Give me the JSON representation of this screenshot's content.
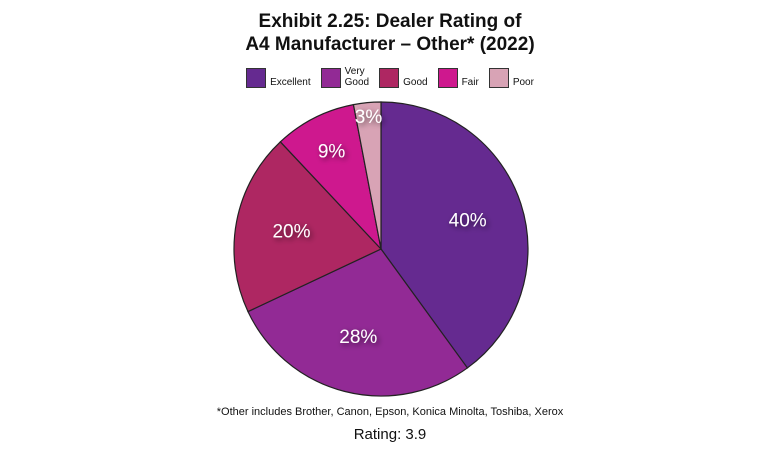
{
  "chart_data": {
    "type": "pie",
    "title_line1": "Exhibit 2.25: Dealer Rating of",
    "title_line2": "A4 Manufacturer – Other* (2022)",
    "legend_position": "top",
    "categories": [
      "Excellent",
      "Very\nGood",
      "Good",
      "Fair",
      "Poor"
    ],
    "values": [
      40,
      28,
      20,
      9,
      3
    ],
    "data_labels": [
      "40%",
      "28%",
      "20%",
      "9%",
      "3%"
    ],
    "colors": [
      "#652A90",
      "#922A95",
      "#AE2762",
      "#CE188E",
      "#D8A3B5"
    ],
    "footnote": "*Other includes Brother, Canon, Epson, Konica Minolta, Toshiba, Xerox",
    "rating_text": "Rating: 3.9"
  }
}
